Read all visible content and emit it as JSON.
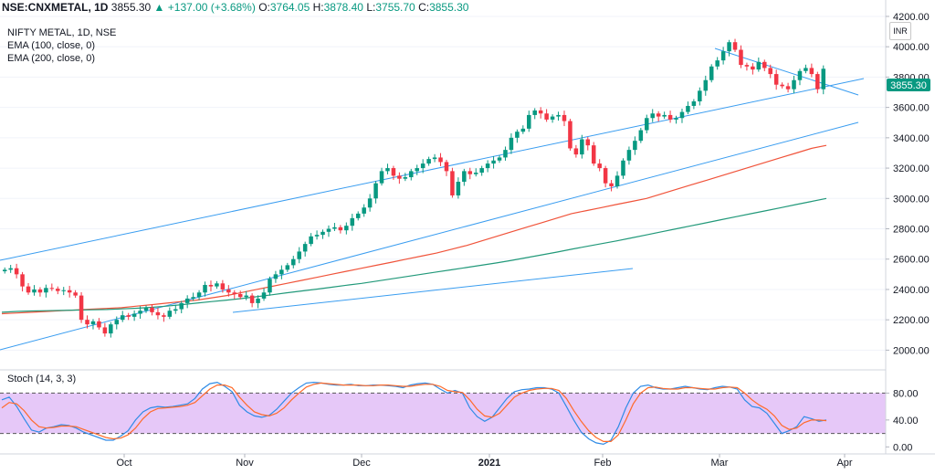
{
  "header": {
    "symbol": "NSE:CNXMETAL, 1D",
    "price": "3855.30",
    "change": "+137.00 (+3.68%)",
    "o_label": "O:",
    "o_value": "3764.05",
    "h_label": "H:",
    "h_value": "3878.40",
    "l_label": "L:",
    "l_value": "3755.70",
    "c_label": "C:",
    "c_value": "3855.30"
  },
  "legend": {
    "title": "NIFTY METAL, 1D, NSE",
    "ema100": "EMA (100, close, 0)",
    "ema200": "EMA (200, close, 0)",
    "stoch": "Stoch (14, 3, 3)"
  },
  "currency_badge": "INR",
  "last_price_label": "3855.30",
  "colors": {
    "up": "#089981",
    "down": "#f23645",
    "ema100": "#f0533a",
    "ema200": "#22997a",
    "trend": "#3a9df0",
    "stoch_k": "#2f8be6",
    "stoch_d": "#ff6a2a",
    "stoch_band": "#e6c8f8"
  },
  "chart_data": [
    {
      "type": "candlestick",
      "title": "NIFTY METAL, 1D, NSE",
      "x_ticks": [
        "Oct",
        "Nov",
        "Dec",
        "2021",
        "Feb",
        "Mar",
        "Apr"
      ],
      "y_ticks": [
        2000,
        2200,
        2400,
        2600,
        2800,
        3000,
        3200,
        3400,
        3600,
        3800,
        4000,
        4200
      ],
      "ylim": [
        1900,
        4260
      ],
      "close": [
        2530,
        2540,
        2500,
        2420,
        2380,
        2400,
        2380,
        2410,
        2405,
        2390,
        2395,
        2380,
        2360,
        2200,
        2170,
        2190,
        2150,
        2110,
        2170,
        2200,
        2230,
        2220,
        2240,
        2260,
        2280,
        2250,
        2230,
        2220,
        2260,
        2270,
        2310,
        2340,
        2350,
        2380,
        2430,
        2420,
        2440,
        2400,
        2380,
        2370,
        2350,
        2360,
        2310,
        2340,
        2380,
        2470,
        2500,
        2530,
        2560,
        2600,
        2650,
        2700,
        2750,
        2760,
        2780,
        2800,
        2810,
        2790,
        2820,
        2870,
        2900,
        2940,
        3000,
        3100,
        3180,
        3200,
        3150,
        3130,
        3140,
        3180,
        3200,
        3230,
        3260,
        3270,
        3240,
        3180,
        3020,
        3110,
        3180,
        3160,
        3170,
        3200,
        3230,
        3250,
        3270,
        3320,
        3400,
        3440,
        3460,
        3550,
        3580,
        3560,
        3520,
        3540,
        3550,
        3510,
        3330,
        3290,
        3390,
        3350,
        3230,
        3200,
        3100,
        3080,
        3150,
        3250,
        3320,
        3380,
        3450,
        3530,
        3560,
        3540,
        3550,
        3520,
        3530,
        3570,
        3610,
        3640,
        3710,
        3780,
        3870,
        3910,
        3970,
        4030,
        3980,
        3880,
        3870,
        3850,
        3900,
        3860,
        3820,
        3750,
        3740,
        3720,
        3780,
        3840,
        3860,
        3820,
        3720,
        3855
      ],
      "ema100": [
        2240,
        2245,
        2250,
        2255,
        2260,
        2265,
        2270,
        2275,
        2280,
        2290,
        2300,
        2310,
        2320,
        2330,
        2345,
        2360,
        2380,
        2400,
        2420,
        2440,
        2460,
        2480,
        2500,
        2520,
        2540,
        2560,
        2580,
        2600,
        2620,
        2640,
        2665,
        2690,
        2720,
        2750,
        2780,
        2810,
        2840,
        2870,
        2900,
        2920,
        2940,
        2960,
        2980,
        3000,
        3030,
        3060,
        3090,
        3120,
        3150,
        3180,
        3210,
        3240,
        3270,
        3300,
        3330,
        3350
      ],
      "ema200": [
        2250,
        2255,
        2258,
        2260,
        2262,
        2264,
        2266,
        2268,
        2272,
        2276,
        2282,
        2290,
        2300,
        2310,
        2320,
        2330,
        2340,
        2352,
        2365,
        2378,
        2390,
        2402,
        2415,
        2428,
        2440,
        2455,
        2470,
        2485,
        2500,
        2515,
        2530,
        2545,
        2560,
        2575,
        2592,
        2610,
        2628,
        2646,
        2665,
        2684,
        2702,
        2720,
        2740,
        2760,
        2780,
        2800,
        2820,
        2840,
        2860,
        2880,
        2900,
        2920,
        2940,
        2960,
        2980,
        3000
      ]
    },
    {
      "type": "line",
      "title": "Stoch (14, 3, 3)",
      "y_ticks": [
        0,
        40,
        80
      ],
      "y_tick_labels": [
        "0.00",
        "40.00",
        "80.00"
      ],
      "band": [
        20,
        80
      ],
      "ylim": [
        -5,
        105
      ],
      "series": [
        {
          "values": [
            70,
            74,
            60,
            42,
            25,
            22,
            28,
            30,
            33,
            32,
            28,
            22,
            18,
            14,
            10,
            10,
            16,
            24,
            40,
            52,
            58,
            60,
            59,
            60,
            62,
            64,
            72,
            86,
            94,
            96,
            90,
            82,
            62,
            52,
            46,
            44,
            47,
            56,
            68,
            80,
            88,
            95,
            96,
            95,
            93,
            92,
            92,
            93,
            91,
            91,
            92,
            92,
            91,
            90,
            88,
            92,
            94,
            95,
            93,
            86,
            80,
            84,
            80,
            58,
            45,
            38,
            44,
            58,
            72,
            82,
            85,
            86,
            88,
            88,
            86,
            80,
            60,
            40,
            22,
            12,
            6,
            4,
            10,
            30,
            58,
            80,
            90,
            92,
            88,
            86,
            86,
            88,
            90,
            88,
            86,
            85,
            88,
            90,
            89,
            86,
            70,
            60,
            58,
            50,
            35,
            20,
            24,
            30,
            45,
            42,
            38,
            40
          ]
        },
        {
          "values": [
            58,
            66,
            64,
            54,
            40,
            30,
            28,
            29,
            31,
            31,
            30,
            26,
            22,
            18,
            14,
            12,
            13,
            18,
            28,
            42,
            52,
            57,
            58,
            59,
            60,
            62,
            66,
            76,
            86,
            92,
            92,
            88,
            74,
            62,
            52,
            48,
            46,
            50,
            58,
            70,
            80,
            89,
            93,
            95,
            94,
            93,
            92,
            92,
            92,
            91,
            91,
            92,
            92,
            91,
            90,
            90,
            92,
            93,
            93,
            90,
            84,
            82,
            81,
            70,
            56,
            46,
            44,
            50,
            62,
            74,
            80,
            84,
            86,
            87,
            87,
            84,
            72,
            54,
            38,
            24,
            14,
            8,
            8,
            18,
            40,
            64,
            80,
            88,
            89,
            87,
            86,
            86,
            88,
            88,
            87,
            86,
            86,
            88,
            89,
            88,
            80,
            70,
            62,
            56,
            46,
            32,
            26,
            28,
            36,
            40,
            40,
            39
          ]
        }
      ]
    }
  ]
}
